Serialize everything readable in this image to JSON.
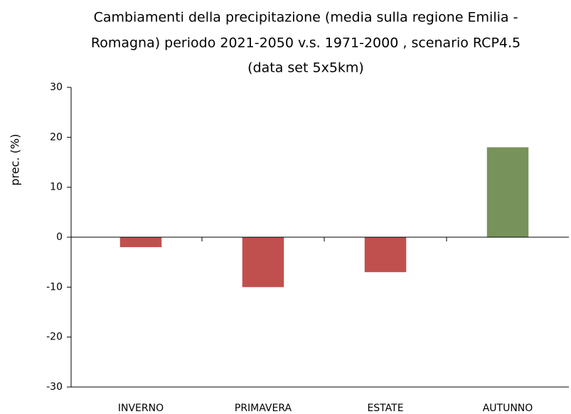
{
  "chart_data": {
    "type": "bar",
    "title": [
      "Cambiamenti della precipitazione (media sulla regione Emilia -",
      "Romagna) periodo 2021-2050 v.s. 1971-2000 , scenario RCP4.5",
      "(data set 5x5km)"
    ],
    "y_label": "prec. (%)",
    "categories": [
      "INVERNO",
      "PRIMAVERA",
      "ESTATE",
      "AUTUNNO"
    ],
    "values": [
      -2,
      -10,
      -7,
      18
    ],
    "colors": [
      "#c0504d",
      "#c0504d",
      "#c0504d",
      "#77935b"
    ],
    "ylim": [
      -30,
      30
    ],
    "yticks": [
      -30,
      -20,
      -10,
      0,
      10,
      20,
      30
    ],
    "grid": false
  }
}
